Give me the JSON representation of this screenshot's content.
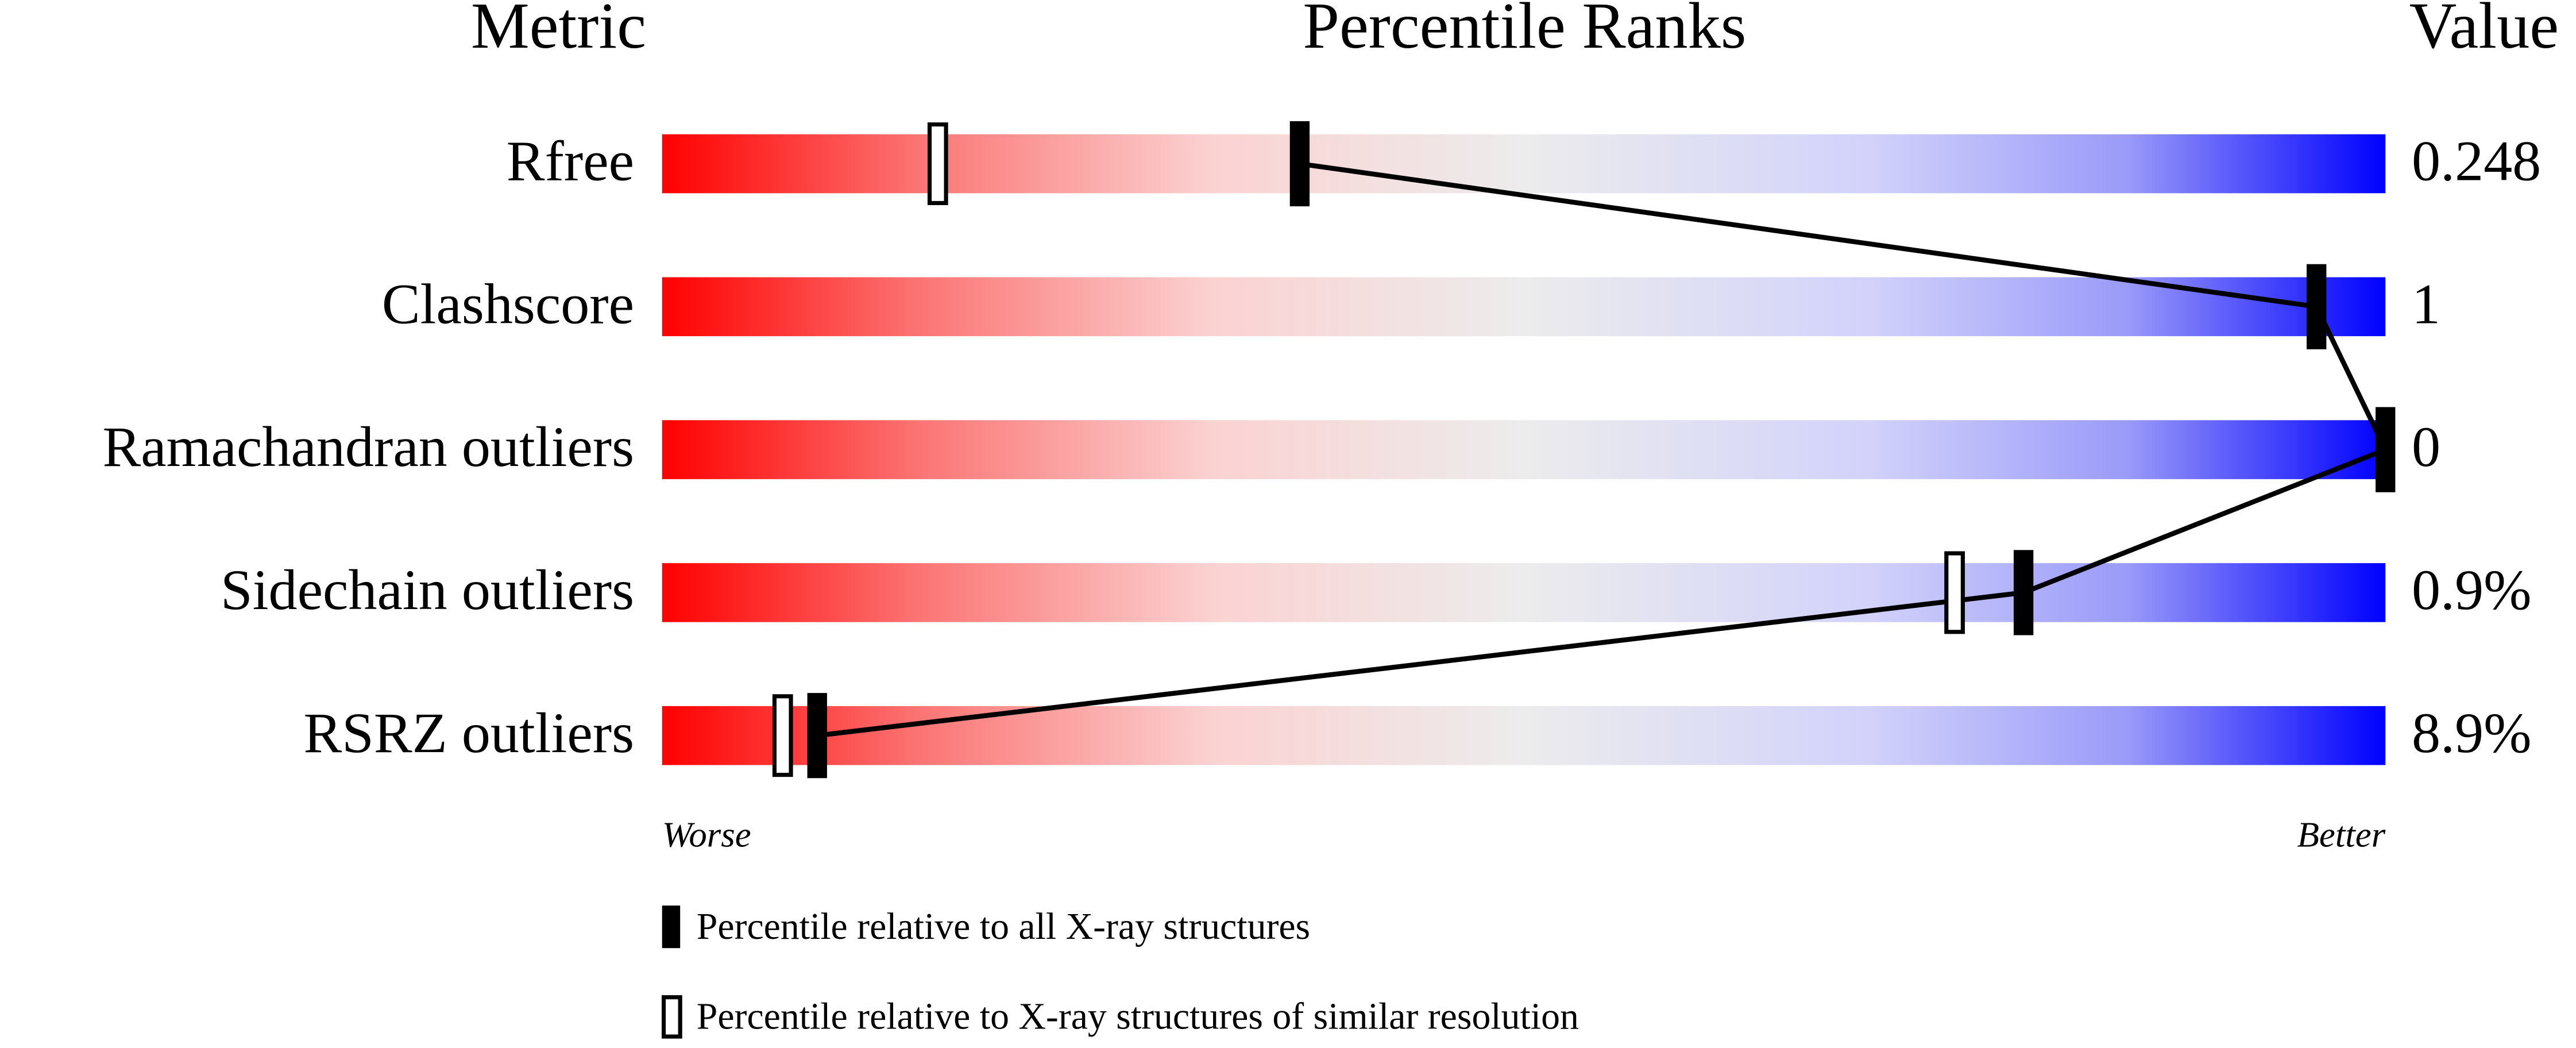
{
  "chart_data": {
    "type": "percentile-slider",
    "headers": {
      "metric": "Metric",
      "ranks": "Percentile Ranks",
      "value": "Value"
    },
    "xlim": [
      0,
      100
    ],
    "rows": [
      {
        "metric": "Rfree",
        "value": "0.248",
        "percentile_all": 37,
        "percentile_similar": 16
      },
      {
        "metric": "Clashscore",
        "value": "1",
        "percentile_all": 96,
        "percentile_similar": null
      },
      {
        "metric": "Ramachandran outliers",
        "value": "0",
        "percentile_all": 100,
        "percentile_similar": null
      },
      {
        "metric": "Sidechain outliers",
        "value": "0.9%",
        "percentile_all": 79,
        "percentile_similar": 75
      },
      {
        "metric": "RSRZ outliers",
        "value": "8.9%",
        "percentile_all": 9,
        "percentile_similar": 7
      }
    ],
    "axis_labels": {
      "low": "Worse",
      "high": "Better"
    },
    "legend": {
      "all": "Percentile relative to all X-ray structures",
      "similar": "Percentile relative to X-ray structures of similar resolution"
    }
  }
}
